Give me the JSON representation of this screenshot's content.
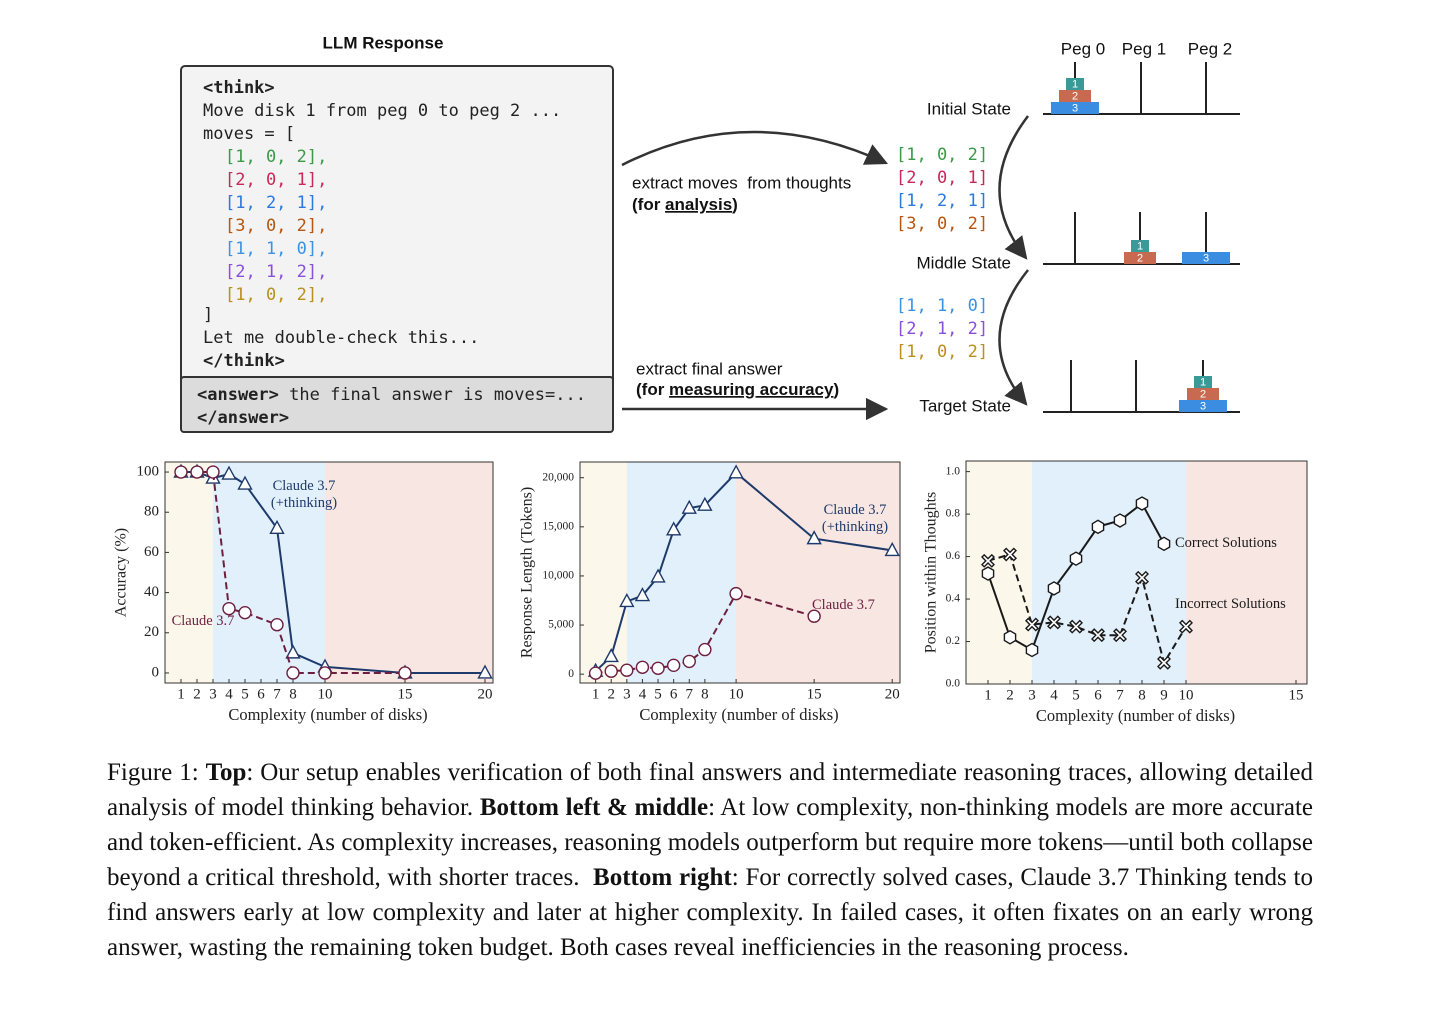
{
  "diagram": {
    "title": "LLM Response",
    "think_open": "<think>",
    "narration": "Move disk 1 from peg 0 to peg 2 ...",
    "moves_open": "moves = [",
    "moves": [
      {
        "text": "[1, 0, 2],",
        "color": "#3a9a48"
      },
      {
        "text": "[2, 0, 1],",
        "color": "#c8285a"
      },
      {
        "text": "[1, 2, 1],",
        "color": "#2a78e0"
      },
      {
        "text": "[3, 0, 2],",
        "color": "#b8560f"
      },
      {
        "text": "[1, 1, 0],",
        "color": "#3a92e4"
      },
      {
        "text": "[2, 1, 2],",
        "color": "#8a4ee0"
      },
      {
        "text": "[1, 0, 2],",
        "color": "#b8901a"
      }
    ],
    "moves_close": "]",
    "check": "Let me double-check this...",
    "think_close": "</think>",
    "answer_open": "<answer>",
    "answer_text": " the final answer is moves=...",
    "answer_close": "</answer>",
    "extract_moves": "extract moves  from thoughts",
    "analysis_note": [
      "(for ",
      "analysis",
      ")"
    ],
    "extract_answer": "extract final answer",
    "accuracy_note": [
      "(for ",
      "measuring accuracy",
      ")"
    ],
    "extracted_moves": [
      [
        {
          "text": "[1, 0, 2]",
          "color": "#3a9a48"
        },
        {
          "text": "[2, 0, 1]",
          "color": "#c8285a"
        },
        {
          "text": "[1, 2, 1]",
          "color": "#2a78e0"
        },
        {
          "text": "[3, 0, 2]",
          "color": "#b8560f"
        }
      ],
      [
        {
          "text": "[1, 1, 0]",
          "color": "#3a92e4"
        },
        {
          "text": "[2, 1, 2]",
          "color": "#8a4ee0"
        },
        {
          "text": "[1, 0, 2]",
          "color": "#b8901a"
        }
      ]
    ],
    "pegs": [
      "Peg 0",
      "Peg 1",
      "Peg 2"
    ],
    "disk_colors": {
      "1": "#3a9a98",
      "2": "#c86a50",
      "3": "#3a8de0"
    },
    "states": [
      {
        "name": "Initial State",
        "pegs": [
          [
            "3",
            "2",
            "1"
          ],
          [],
          []
        ]
      },
      {
        "name": "Middle State",
        "pegs": [
          [],
          [
            "2",
            "1"
          ],
          [
            "3"
          ]
        ]
      },
      {
        "name": "Target State",
        "pegs": [
          [],
          [],
          [
            "3",
            "2",
            "1"
          ]
        ]
      }
    ]
  },
  "chart_data": [
    {
      "type": "line",
      "x_label": "Complexity (number of disks)",
      "y_label": "Accuracy (%)",
      "xlim": [
        0,
        20.5
      ],
      "ylim": [
        -5,
        105
      ],
      "xticks": [
        1,
        2,
        3,
        4,
        5,
        6,
        7,
        8,
        10,
        15,
        20
      ],
      "yticks": [
        0,
        20,
        40,
        60,
        80,
        100
      ],
      "region_breaks": [
        3,
        10
      ],
      "region_colors": [
        "#fbf7ea",
        "#e2f0fb",
        "#f8e6e2"
      ],
      "series": [
        {
          "name": "Claude 3.7 (+thinking)",
          "color": "#1e3a6b",
          "marker": "triangle",
          "dashed": false,
          "x": [
            1,
            2,
            3,
            4,
            5,
            7,
            8,
            10,
            15,
            20
          ],
          "values": [
            100,
            100,
            97,
            99,
            94,
            72,
            10,
            3,
            0,
            0
          ]
        },
        {
          "name": "Claude 3.7",
          "color": "#6e1f3f",
          "marker": "circle",
          "dashed": true,
          "x": [
            1,
            2,
            3,
            4,
            5,
            7,
            8,
            10,
            15
          ],
          "values": [
            100,
            100,
            100,
            32,
            30,
            24,
            0,
            0,
            0
          ]
        }
      ]
    },
    {
      "type": "line",
      "x_label": "Complexity (number of disks)",
      "y_label": "Response Length (Tokens)",
      "xlim": [
        0,
        20.5
      ],
      "ylim": [
        -900,
        21600
      ],
      "xticks": [
        1,
        2,
        3,
        4,
        5,
        6,
        7,
        8,
        10,
        15,
        20
      ],
      "yticks": [
        0,
        {
          "value": 5000,
          "label": "5,000"
        },
        {
          "value": 10000,
          "label": "10,000"
        },
        {
          "value": 15000,
          "label": "15,000"
        },
        {
          "value": 20000,
          "label": "20,000"
        }
      ],
      "region_breaks": [
        3,
        10
      ],
      "region_colors": [
        "#fbf7ea",
        "#e2f0fb",
        "#f8e6e2"
      ],
      "series": [
        {
          "name": "Claude 3.7 (+thinking)",
          "color": "#1e3a6b",
          "marker": "triangle",
          "dashed": false,
          "x": [
            1,
            2,
            3,
            4,
            5,
            6,
            7,
            8,
            10,
            15,
            20
          ],
          "values": [
            300,
            1800,
            7400,
            8000,
            9900,
            14700,
            16900,
            17200,
            20500,
            13800,
            12600
          ]
        },
        {
          "name": "Claude 3.7",
          "color": "#6e1f3f",
          "marker": "circle",
          "dashed": true,
          "x": [
            1,
            2,
            3,
            4,
            5,
            6,
            7,
            8,
            10,
            15
          ],
          "values": [
            100,
            300,
            400,
            700,
            600,
            900,
            1300,
            2500,
            8200,
            5900
          ]
        }
      ]
    },
    {
      "type": "line",
      "x_label": "Complexity (number of disks)",
      "y_label": "Position within Thoughts",
      "xlim": [
        0,
        15.5
      ],
      "ylim": [
        0,
        1.05
      ],
      "xticks": [
        1,
        2,
        3,
        4,
        5,
        6,
        7,
        8,
        9,
        10,
        15
      ],
      "yticks": [
        {
          "value": 0,
          "label": "0.0"
        },
        0.2,
        0.4,
        0.6,
        0.8,
        {
          "value": 1,
          "label": "1.0"
        }
      ],
      "region_breaks": [
        3,
        10
      ],
      "region_colors": [
        "#fbf7ea",
        "#e2f0fb",
        "#f8e6e2"
      ],
      "series": [
        {
          "name": "Correct Solutions",
          "color": "#1a1a1a",
          "marker": "hexagon",
          "dashed": false,
          "x": [
            1,
            2,
            3,
            4,
            5,
            6,
            7,
            8,
            9
          ],
          "values": [
            0.52,
            0.22,
            0.16,
            0.45,
            0.59,
            0.74,
            0.77,
            0.85,
            0.66
          ]
        },
        {
          "name": "Incorrect Solutions",
          "color": "#1a1a1a",
          "marker": "x",
          "dashed": true,
          "x": [
            1,
            2,
            3,
            4,
            5,
            6,
            7,
            8,
            9,
            10
          ],
          "values": [
            0.58,
            0.61,
            0.28,
            0.29,
            0.27,
            0.23,
            0.23,
            0.5,
            0.1,
            0.27
          ]
        }
      ]
    }
  ],
  "caption": [
    {
      "text": "Figure 1: ",
      "bold": false
    },
    {
      "text": "Top",
      "bold": true
    },
    {
      "text": ": Our setup enables verification of both final answers and intermediate reasoning traces, allowing detailed analysis of model thinking behavior. ",
      "bold": false
    },
    {
      "text": "Bottom left & middle",
      "bold": true
    },
    {
      "text": ": At low complexity, non-thinking models are more accurate and token-efficient. As complexity increases, reasoning models outperform but require more tokens—until both collapse beyond a critical threshold, with shorter traces.  ",
      "bold": false
    },
    {
      "text": "Bottom right",
      "bold": true
    },
    {
      "text": ": For correctly solved cases, Claude 3.7 Thinking tends to find answers early at low complexity and later at higher complexity. In failed cases, it often fixates on an early wrong answer, wasting the remaining token budget. Both cases reveal inefficiencies in the reasoning process.",
      "bold": false
    }
  ]
}
